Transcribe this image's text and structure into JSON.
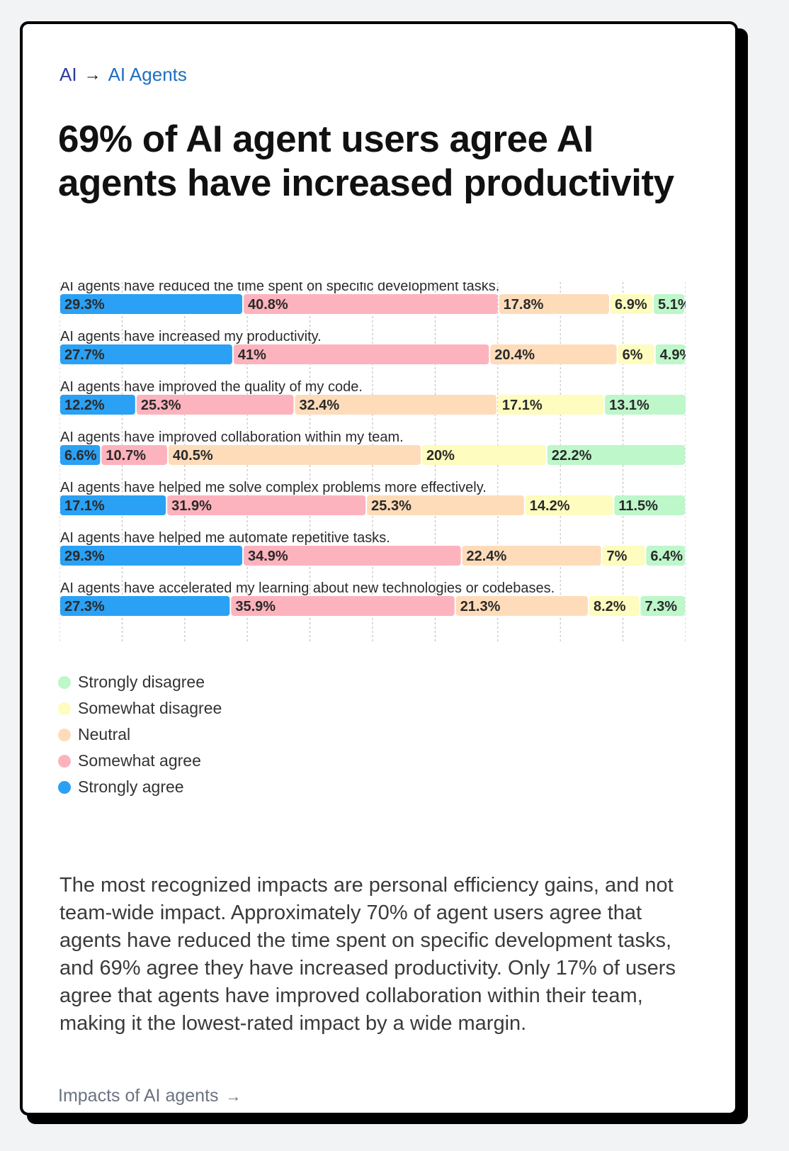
{
  "breadcrumb": {
    "root": "AI",
    "arrow": "→",
    "current": "AI Agents"
  },
  "title": "69% of AI agent users agree AI agents have increased productivity",
  "chart_data": {
    "type": "bar",
    "orientation": "horizontal-stacked-100",
    "xlim": [
      0,
      100
    ],
    "grid": true,
    "legend_placement": "bottom-left",
    "series": [
      {
        "name": "Strongly agree",
        "color": "#2aa1f4"
      },
      {
        "name": "Somewhat agree",
        "color": "#fdb3bd"
      },
      {
        "name": "Neutral",
        "color": "#fedcba"
      },
      {
        "name": "Somewhat disagree",
        "color": "#fefcbe"
      },
      {
        "name": "Strongly disagree",
        "color": "#bdf7ca"
      }
    ],
    "categories": [
      {
        "label": "AI agents have reduced the time spent on specific development tasks.",
        "values": [
          29.3,
          40.8,
          17.8,
          6.9,
          5.1
        ]
      },
      {
        "label": "AI agents have increased my productivity.",
        "values": [
          27.7,
          41,
          20.4,
          6,
          4.9
        ]
      },
      {
        "label": "AI agents have improved the quality of my code.",
        "values": [
          12.2,
          25.3,
          32.4,
          17.1,
          13.1
        ]
      },
      {
        "label": "AI agents have improved collaboration within my team.",
        "values": [
          6.6,
          10.7,
          40.5,
          20,
          22.2
        ]
      },
      {
        "label": "AI agents have helped me solve complex problems more effectively.",
        "values": [
          17.1,
          31.9,
          25.3,
          14.2,
          11.5
        ]
      },
      {
        "label": "AI agents have helped me automate repetitive tasks.",
        "values": [
          29.3,
          34.9,
          22.4,
          7,
          6.4
        ]
      },
      {
        "label": "AI agents have accelerated my learning about new technologies or codebases.",
        "values": [
          27.3,
          35.9,
          21.3,
          8.2,
          7.3
        ]
      }
    ]
  },
  "legend": [
    {
      "label": "Strongly disagree",
      "color": "#bdf7ca"
    },
    {
      "label": "Somewhat disagree",
      "color": "#fefcbe"
    },
    {
      "label": "Neutral",
      "color": "#fedcba"
    },
    {
      "label": "Somewhat agree",
      "color": "#fdb3bd"
    },
    {
      "label": "Strongly agree",
      "color": "#2aa1f4"
    }
  ],
  "summary": "The most recognized impacts are personal efficiency gains, and not team-wide impact. Approximately 70% of agent users agree that agents have reduced the time spent on specific development tasks, and 69% agree they have increased productivity. Only 17% of users agree that agents have improved collaboration within their team, making it the lowest-rated impact by a wide margin.",
  "footer_link": {
    "label": "Impacts of AI agents",
    "arrow": "→"
  }
}
